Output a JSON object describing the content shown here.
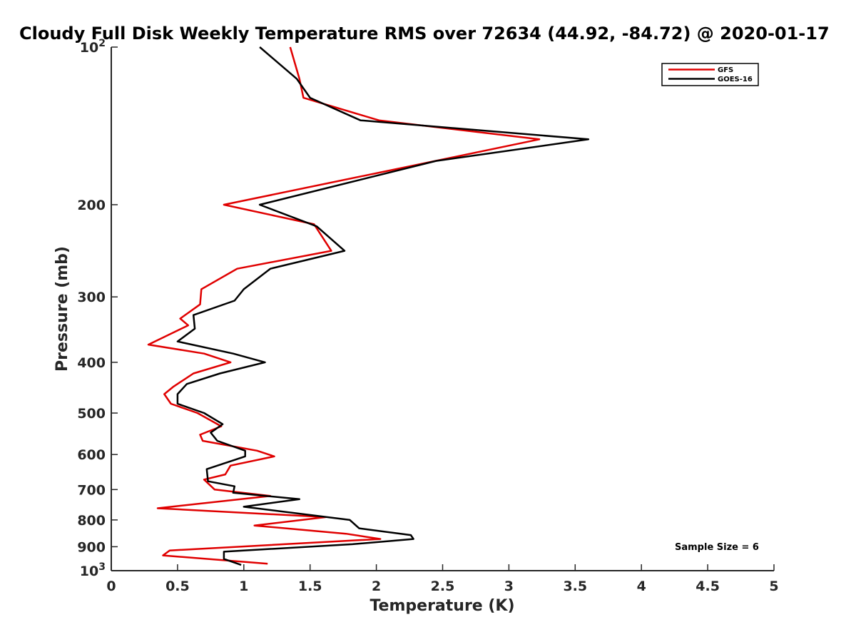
{
  "chart_data": {
    "type": "line",
    "title": "Cloudy Full Disk Weekly Temperature RMS over 72634 (44.92, -84.72) @ 2020-01-17",
    "xlabel": "Temperature (K)",
    "ylabel": "Pressure (mb)",
    "xlim": [
      0,
      5
    ],
    "ylim": [
      100,
      1000
    ],
    "y_scale": "log",
    "y_reversed": true,
    "x_ticks": [
      "0",
      "0.5",
      "1",
      "1.5",
      "2",
      "2.5",
      "3",
      "3.5",
      "4",
      "4.5",
      "5"
    ],
    "y_ticks": [
      {
        "value": 100,
        "base": "10",
        "exp": "2"
      },
      {
        "value": 200,
        "label": "200"
      },
      {
        "value": 300,
        "label": "300"
      },
      {
        "value": 400,
        "label": "400"
      },
      {
        "value": 500,
        "label": "500"
      },
      {
        "value": 600,
        "label": "600"
      },
      {
        "value": 700,
        "label": "700"
      },
      {
        "value": 800,
        "label": "800"
      },
      {
        "value": 900,
        "label": "900"
      },
      {
        "value": 1000,
        "base": "10",
        "exp": "3"
      }
    ],
    "grid": false,
    "legend_position": "top-right",
    "annotation": "Sample Size = 6",
    "series": [
      {
        "name": "GFS",
        "color": "#e00000",
        "points": [
          [
            1.35,
            100
          ],
          [
            1.42,
            115
          ],
          [
            1.45,
            125
          ],
          [
            2.02,
            138
          ],
          [
            3.23,
            150
          ],
          [
            2.2,
            170
          ],
          [
            0.85,
            200
          ],
          [
            1.53,
            218
          ],
          [
            1.66,
            245
          ],
          [
            0.95,
            265
          ],
          [
            0.68,
            290
          ],
          [
            0.67,
            310
          ],
          [
            0.52,
            330
          ],
          [
            0.58,
            340
          ],
          [
            0.28,
            370
          ],
          [
            0.7,
            385
          ],
          [
            0.9,
            400
          ],
          [
            0.62,
            420
          ],
          [
            0.47,
            445
          ],
          [
            0.4,
            460
          ],
          [
            0.45,
            480
          ],
          [
            0.65,
            500
          ],
          [
            0.83,
            530
          ],
          [
            0.67,
            550
          ],
          [
            0.69,
            565
          ],
          [
            1.1,
            590
          ],
          [
            1.23,
            605
          ],
          [
            0.9,
            630
          ],
          [
            0.86,
            655
          ],
          [
            0.7,
            670
          ],
          [
            0.78,
            700
          ],
          [
            1.2,
            720
          ],
          [
            0.35,
            760
          ],
          [
            1.62,
            790
          ],
          [
            1.08,
            820
          ],
          [
            1.77,
            850
          ],
          [
            2.03,
            870
          ],
          [
            0.44,
            915
          ],
          [
            0.39,
            935
          ],
          [
            1.18,
            970
          ]
        ]
      },
      {
        "name": "GOES-16",
        "color": "#000000",
        "points": [
          [
            1.12,
            100
          ],
          [
            1.4,
            115
          ],
          [
            1.5,
            125
          ],
          [
            1.88,
            138
          ],
          [
            3.6,
            150
          ],
          [
            2.45,
            165
          ],
          [
            1.12,
            200
          ],
          [
            1.55,
            220
          ],
          [
            1.76,
            245
          ],
          [
            1.2,
            265
          ],
          [
            1.0,
            290
          ],
          [
            0.93,
            305
          ],
          [
            0.62,
            325
          ],
          [
            0.63,
            345
          ],
          [
            0.5,
            365
          ],
          [
            0.92,
            385
          ],
          [
            1.16,
            400
          ],
          [
            0.82,
            420
          ],
          [
            0.57,
            440
          ],
          [
            0.5,
            460
          ],
          [
            0.5,
            480
          ],
          [
            0.7,
            500
          ],
          [
            0.84,
            525
          ],
          [
            0.75,
            545
          ],
          [
            0.8,
            565
          ],
          [
            1.01,
            590
          ],
          [
            1.01,
            605
          ],
          [
            0.72,
            640
          ],
          [
            0.73,
            675
          ],
          [
            0.93,
            690
          ],
          [
            0.92,
            710
          ],
          [
            1.42,
            730
          ],
          [
            1.0,
            755
          ],
          [
            1.8,
            800
          ],
          [
            1.87,
            830
          ],
          [
            2.26,
            855
          ],
          [
            2.28,
            870
          ],
          [
            1.82,
            890
          ],
          [
            0.85,
            920
          ],
          [
            0.85,
            950
          ],
          [
            0.98,
            975
          ]
        ]
      }
    ]
  }
}
